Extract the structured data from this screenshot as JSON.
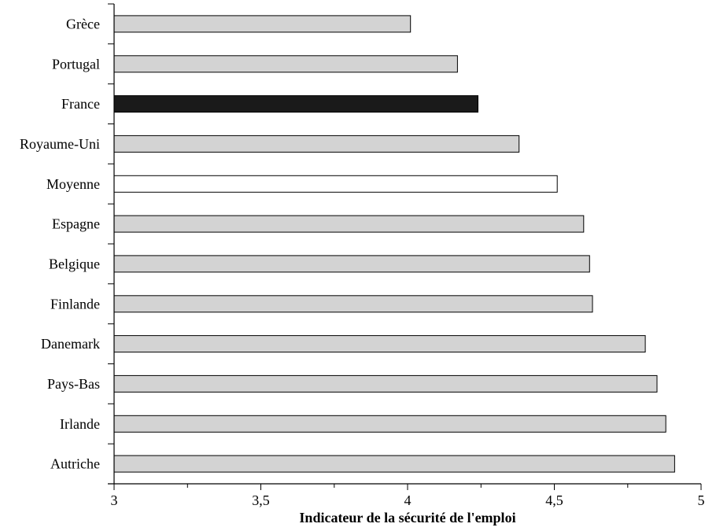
{
  "chart_data": {
    "type": "bar",
    "orientation": "horizontal",
    "title": "",
    "xlabel": "Indicateur de la sécurité de l'emploi",
    "ylabel": "",
    "xlim": [
      3,
      5
    ],
    "x_ticks": [
      3,
      3.5,
      4,
      4.5,
      5
    ],
    "x_tick_labels": [
      "3",
      "3,5",
      "4",
      "4,5",
      "5"
    ],
    "grid": false,
    "legend": "none",
    "categories": [
      "Grèce",
      "Portugal",
      "France",
      "Royaume-Uni",
      "Moyenne",
      "Espagne",
      "Belgique",
      "Finlande",
      "Danemark",
      "Pays-Bas",
      "Irlande",
      "Autriche"
    ],
    "values": [
      4.01,
      4.17,
      4.24,
      4.38,
      4.51,
      4.6,
      4.62,
      4.63,
      4.81,
      4.85,
      4.88,
      4.91
    ],
    "bar_fills": [
      "#d3d3d3",
      "#d3d3d3",
      "#1a1a1a",
      "#d3d3d3",
      "#ffffff",
      "#d3d3d3",
      "#d3d3d3",
      "#d3d3d3",
      "#d3d3d3",
      "#d3d3d3",
      "#d3d3d3",
      "#d3d3d3"
    ],
    "bar_stroke": "#000000"
  }
}
